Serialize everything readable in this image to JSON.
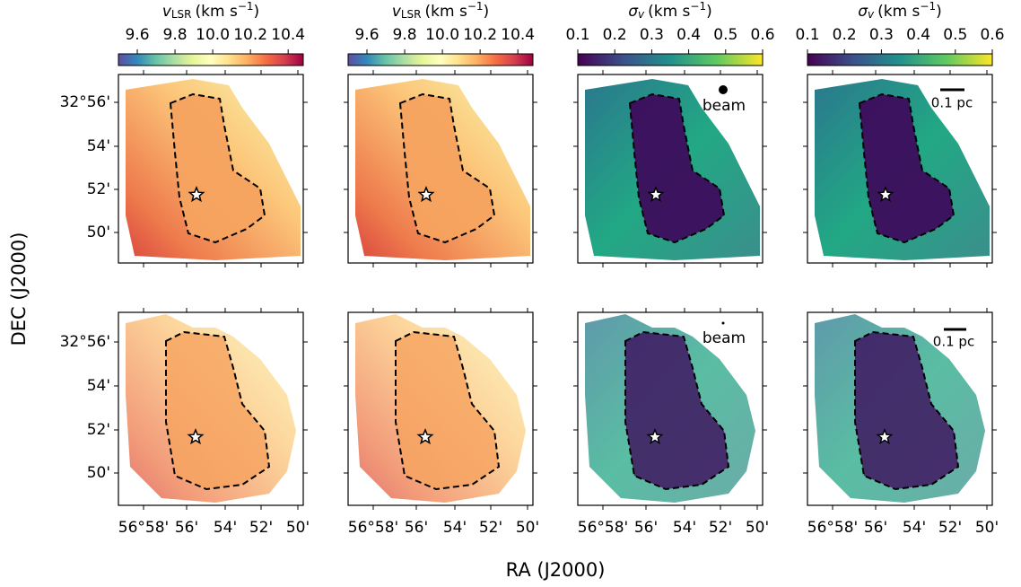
{
  "figure": {
    "xlabel": "RA (J2000)",
    "ylabel": "DEC (J2000)",
    "colorbars": [
      {
        "symbol": "v",
        "subscript": "LSR",
        "unit": "(km s",
        "exponent": "−1",
        "close": ")",
        "cmap": "Spectral_r",
        "lim": [
          9.5,
          10.48
        ],
        "ticks": [
          9.6,
          9.8,
          {
            "value": 10,
            "label": "10.0"
          },
          10.2,
          10.4
        ]
      },
      {
        "symbol": "v",
        "subscript": "LSR",
        "unit": "(km s",
        "exponent": "−1",
        "close": ")",
        "cmap": "Spectral_r",
        "lim": [
          9.5,
          10.48
        ],
        "ticks": [
          9.6,
          9.8,
          {
            "value": 10,
            "label": "10.0"
          },
          10.2,
          10.4
        ]
      },
      {
        "symbol": "σ",
        "subscript": "v",
        "unit": "(km s",
        "exponent": "−1",
        "close": ")",
        "cmap": "viridis",
        "lim": [
          0.1,
          0.6
        ],
        "ticks": [
          0.1,
          0.2,
          0.3,
          0.4,
          0.5,
          0.6
        ]
      },
      {
        "symbol": "σ",
        "subscript": "v",
        "unit": "(km s",
        "exponent": "−1",
        "close": ")",
        "cmap": "viridis",
        "lim": [
          0.1,
          0.6
        ],
        "ticks": [
          0.1,
          0.2,
          0.3,
          0.4,
          0.5,
          0.6
        ]
      }
    ],
    "dec_ticklabels": [
      "32°56'",
      "54'",
      "52'",
      "50'"
    ],
    "ra_ticklabels": [
      "56°58'",
      "56'",
      "54'",
      "52'",
      "50'"
    ],
    "annotations": {
      "beam": "beam",
      "scale": "0.1 pc"
    }
  }
}
